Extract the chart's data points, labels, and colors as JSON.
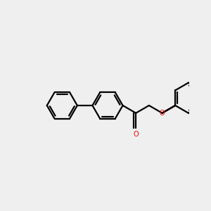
{
  "bg_color": "#efefef",
  "bond_color": "#000000",
  "o_color": "#ff0000",
  "lw": 1.6,
  "dbl_off": 3.8,
  "figsize": [
    3.0,
    3.0
  ],
  "dpi": 100,
  "xlim": [
    0,
    300
  ],
  "ylim": [
    0,
    300
  ],
  "bl": 28
}
